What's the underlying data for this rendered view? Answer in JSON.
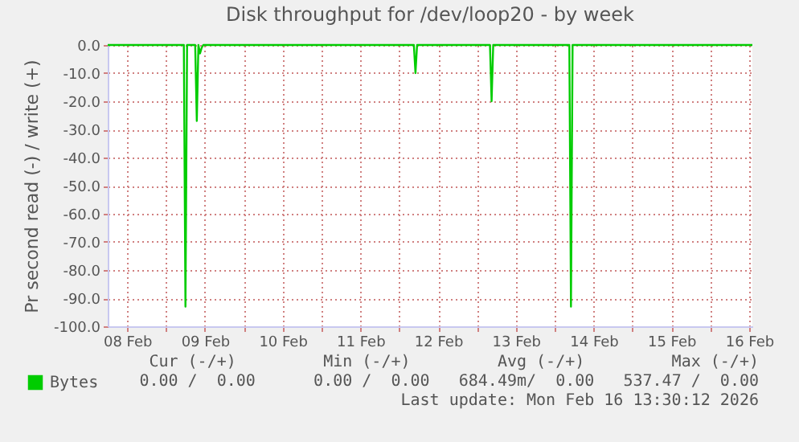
{
  "chart_data": {
    "type": "line",
    "title": "Disk throughput for /dev/loop20 - by week",
    "ylabel": "Pr second read (-) / write (+)",
    "x": [
      "2026-02-08T06:00",
      "2026-02-09T05:30",
      "2026-02-09T06:00",
      "2026-02-09T06:30",
      "2026-02-09T09:00",
      "2026-02-09T09:30",
      "2026-02-09T10:00",
      "2026-02-09T10:30",
      "2026-02-09T11:00",
      "2026-02-09T11:30",
      "2026-02-12T04:30",
      "2026-02-12T05:00",
      "2026-02-12T05:30",
      "2026-02-13T04:00",
      "2026-02-13T04:30",
      "2026-02-13T05:00",
      "2026-02-14T04:30",
      "2026-02-14T05:00",
      "2026-02-14T05:30",
      "2026-02-16T13:00"
    ],
    "series": [
      {
        "name": "Bytes",
        "color": "#00cc00",
        "values": [
          0,
          0,
          -93,
          0,
          0,
          -27,
          0,
          -3,
          -1,
          0,
          0,
          -10,
          0,
          0,
          -20,
          0,
          0,
          -93,
          0,
          0
        ]
      }
    ],
    "xlim": [
      "2026-02-08T06:00",
      "2026-02-16T13:00"
    ],
    "xticks": [
      {
        "value": "2026-02-08T12:00",
        "label": "08 Feb"
      },
      {
        "value": "2026-02-09T00:00",
        "label": null
      },
      {
        "value": "2026-02-09T12:00",
        "label": "09 Feb"
      },
      {
        "value": "2026-02-10T00:00",
        "label": null
      },
      {
        "value": "2026-02-10T12:00",
        "label": "10 Feb"
      },
      {
        "value": "2026-02-11T00:00",
        "label": null
      },
      {
        "value": "2026-02-11T12:00",
        "label": "11 Feb"
      },
      {
        "value": "2026-02-12T00:00",
        "label": null
      },
      {
        "value": "2026-02-12T12:00",
        "label": "12 Feb"
      },
      {
        "value": "2026-02-13T00:00",
        "label": null
      },
      {
        "value": "2026-02-13T12:00",
        "label": "13 Feb"
      },
      {
        "value": "2026-02-14T00:00",
        "label": null
      },
      {
        "value": "2026-02-14T12:00",
        "label": "14 Feb"
      },
      {
        "value": "2026-02-15T00:00",
        "label": null
      },
      {
        "value": "2026-02-15T12:00",
        "label": "15 Feb"
      },
      {
        "value": "2026-02-16T00:00",
        "label": null
      },
      {
        "value": "2026-02-16T12:00",
        "label": "16 Feb"
      }
    ],
    "ylim": [
      -100,
      0
    ],
    "yticks": [
      {
        "value": 0,
        "label": "0.0"
      },
      {
        "value": -10,
        "label": "-10.0"
      },
      {
        "value": -20,
        "label": "-20.0"
      },
      {
        "value": -30,
        "label": "-30.0"
      },
      {
        "value": -40,
        "label": "-40.0"
      },
      {
        "value": -50,
        "label": "-50.0"
      },
      {
        "value": -60,
        "label": "-60.0"
      },
      {
        "value": -70,
        "label": "-70.0"
      },
      {
        "value": -80,
        "label": "-80.0"
      },
      {
        "value": -90,
        "label": "-90.0"
      },
      {
        "value": -100,
        "label": "-100.0"
      }
    ],
    "grid": true,
    "legend": "bottom left",
    "line_style": "solid",
    "annotations": [
      "Cur (-/+)         Min (-/+)         Avg (-/+)         Max (-/+)",
      "0.00 /  0.00      0.00 /  0.00   684.49m/  0.00   537.47 /  0.00",
      "Last update: Mon Feb 16 13:30:12 2026"
    ]
  }
}
